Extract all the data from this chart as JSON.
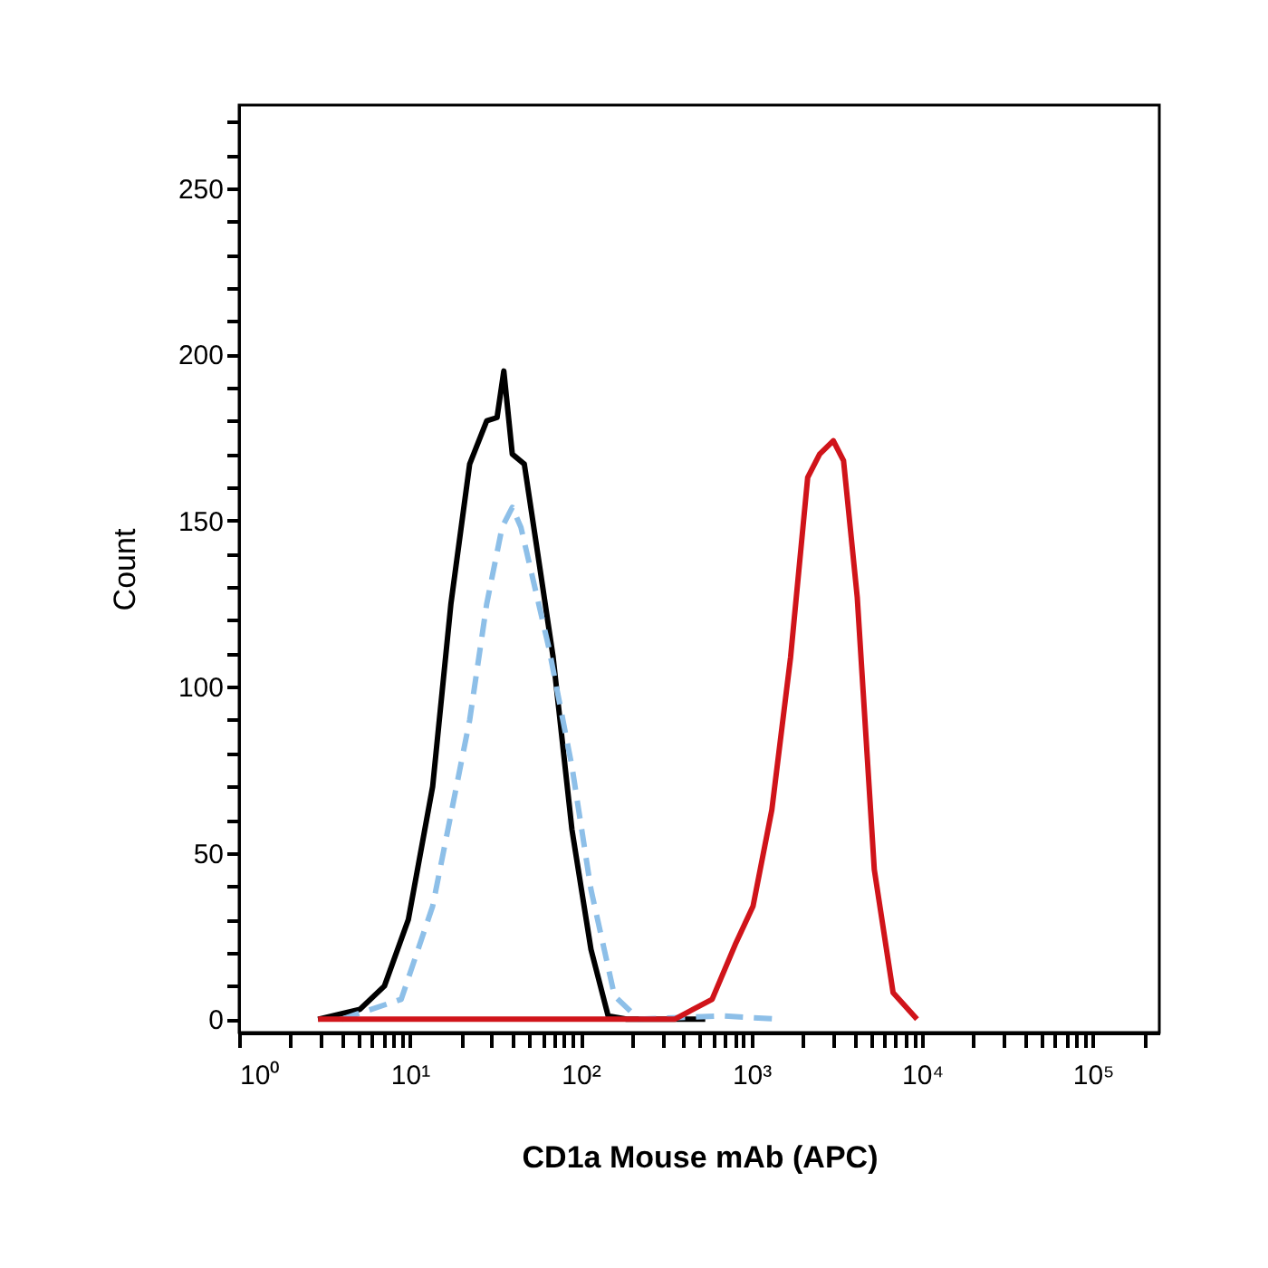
{
  "chart_data": {
    "type": "line",
    "xlabel": "CD1a Mouse mAb (APC)",
    "ylabel": "Count",
    "log": "x",
    "grid": false,
    "marker": "none",
    "xlim": [
      1,
      245000
    ],
    "ylim": [
      -4,
      275
    ],
    "xticks": [
      {
        "value": 1,
        "label": "10⁰"
      },
      {
        "value": 2,
        "label": null
      },
      {
        "value": 3,
        "label": null
      },
      {
        "value": 4,
        "label": null
      },
      {
        "value": 5,
        "label": null
      },
      {
        "value": 6,
        "label": null
      },
      {
        "value": 7,
        "label": null
      },
      {
        "value": 8,
        "label": null
      },
      {
        "value": 9,
        "label": null
      },
      {
        "value": 10,
        "label": "10¹"
      },
      {
        "value": 20,
        "label": null
      },
      {
        "value": 30,
        "label": null
      },
      {
        "value": 40,
        "label": null
      },
      {
        "value": 50,
        "label": null
      },
      {
        "value": 60,
        "label": null
      },
      {
        "value": 70,
        "label": null
      },
      {
        "value": 80,
        "label": null
      },
      {
        "value": 90,
        "label": null
      },
      {
        "value": 100,
        "label": "10²"
      },
      {
        "value": 200,
        "label": null
      },
      {
        "value": 300,
        "label": null
      },
      {
        "value": 400,
        "label": null
      },
      {
        "value": 500,
        "label": null
      },
      {
        "value": 600,
        "label": null
      },
      {
        "value": 700,
        "label": null
      },
      {
        "value": 800,
        "label": null
      },
      {
        "value": 900,
        "label": null
      },
      {
        "value": 1000,
        "label": "10³"
      },
      {
        "value": 2000,
        "label": null
      },
      {
        "value": 3000,
        "label": null
      },
      {
        "value": 4000,
        "label": null
      },
      {
        "value": 5000,
        "label": null
      },
      {
        "value": 6000,
        "label": null
      },
      {
        "value": 7000,
        "label": null
      },
      {
        "value": 8000,
        "label": null
      },
      {
        "value": 9000,
        "label": null
      },
      {
        "value": 10000,
        "label": "10⁴"
      },
      {
        "value": 20000,
        "label": null
      },
      {
        "value": 30000,
        "label": null
      },
      {
        "value": 40000,
        "label": null
      },
      {
        "value": 50000,
        "label": null
      },
      {
        "value": 60000,
        "label": null
      },
      {
        "value": 70000,
        "label": null
      },
      {
        "value": 80000,
        "label": null
      },
      {
        "value": 90000,
        "label": null
      },
      {
        "value": 100000,
        "label": "10⁵"
      },
      {
        "value": 200000,
        "label": null
      }
    ],
    "yticks": [
      0,
      {
        "value": 10,
        "label": null
      },
      {
        "value": 20,
        "label": null
      },
      {
        "value": 30,
        "label": null
      },
      {
        "value": 40,
        "label": null
      },
      50,
      {
        "value": 60,
        "label": null
      },
      {
        "value": 70,
        "label": null
      },
      {
        "value": 80,
        "label": null
      },
      {
        "value": 90,
        "label": null
      },
      100,
      {
        "value": 110,
        "label": null
      },
      {
        "value": 120,
        "label": null
      },
      {
        "value": 130,
        "label": null
      },
      {
        "value": 140,
        "label": null
      },
      150,
      {
        "value": 160,
        "label": null
      },
      {
        "value": 170,
        "label": null
      },
      {
        "value": 180,
        "label": null
      },
      {
        "value": 190,
        "label": null
      },
      200,
      {
        "value": 210,
        "label": null
      },
      {
        "value": 220,
        "label": null
      },
      {
        "value": 230,
        "label": null
      },
      {
        "value": 240,
        "label": null
      },
      250,
      {
        "value": 260,
        "label": null
      },
      {
        "value": 270,
        "label": null
      }
    ],
    "series": [
      {
        "color": "#000000",
        "line_style": "solid",
        "x": [
          2.9,
          5.1,
          7.1,
          9.8,
          13.6,
          17.4,
          22.4,
          28.2,
          32.4,
          35.5,
          39.8,
          46.8,
          55,
          69,
          89,
          115,
          145,
          186,
          537
        ],
        "values": [
          0,
          3,
          10,
          30,
          70,
          125,
          167,
          180,
          181,
          195,
          170,
          167,
          143,
          109,
          57,
          21,
          1,
          0,
          0
        ]
      },
      {
        "color": "#8dbfe8",
        "line_style": "dashed",
        "x": [
          4.0,
          8.9,
          13.6,
          22.4,
          28.2,
          34.7,
          39.8,
          44.7,
          65,
          89,
          115,
          158,
          219,
          692,
          1445
        ],
        "values": [
          0,
          6,
          34,
          90,
          125,
          148,
          154,
          148,
          112,
          76,
          39,
          7,
          0,
          1,
          0
        ]
      },
      {
        "color": "#d0141a",
        "line_style": "solid",
        "x": [
          2.9,
          105,
          158,
          355,
          589,
          813,
          1023,
          1318,
          1698,
          2138,
          2512,
          3020,
          3467,
          4169,
          5248,
          6761,
          9333
        ],
        "values": [
          0,
          0,
          0,
          0,
          6,
          23,
          34,
          63,
          109,
          163,
          170,
          174,
          168,
          127,
          45,
          8,
          0
        ]
      }
    ]
  }
}
